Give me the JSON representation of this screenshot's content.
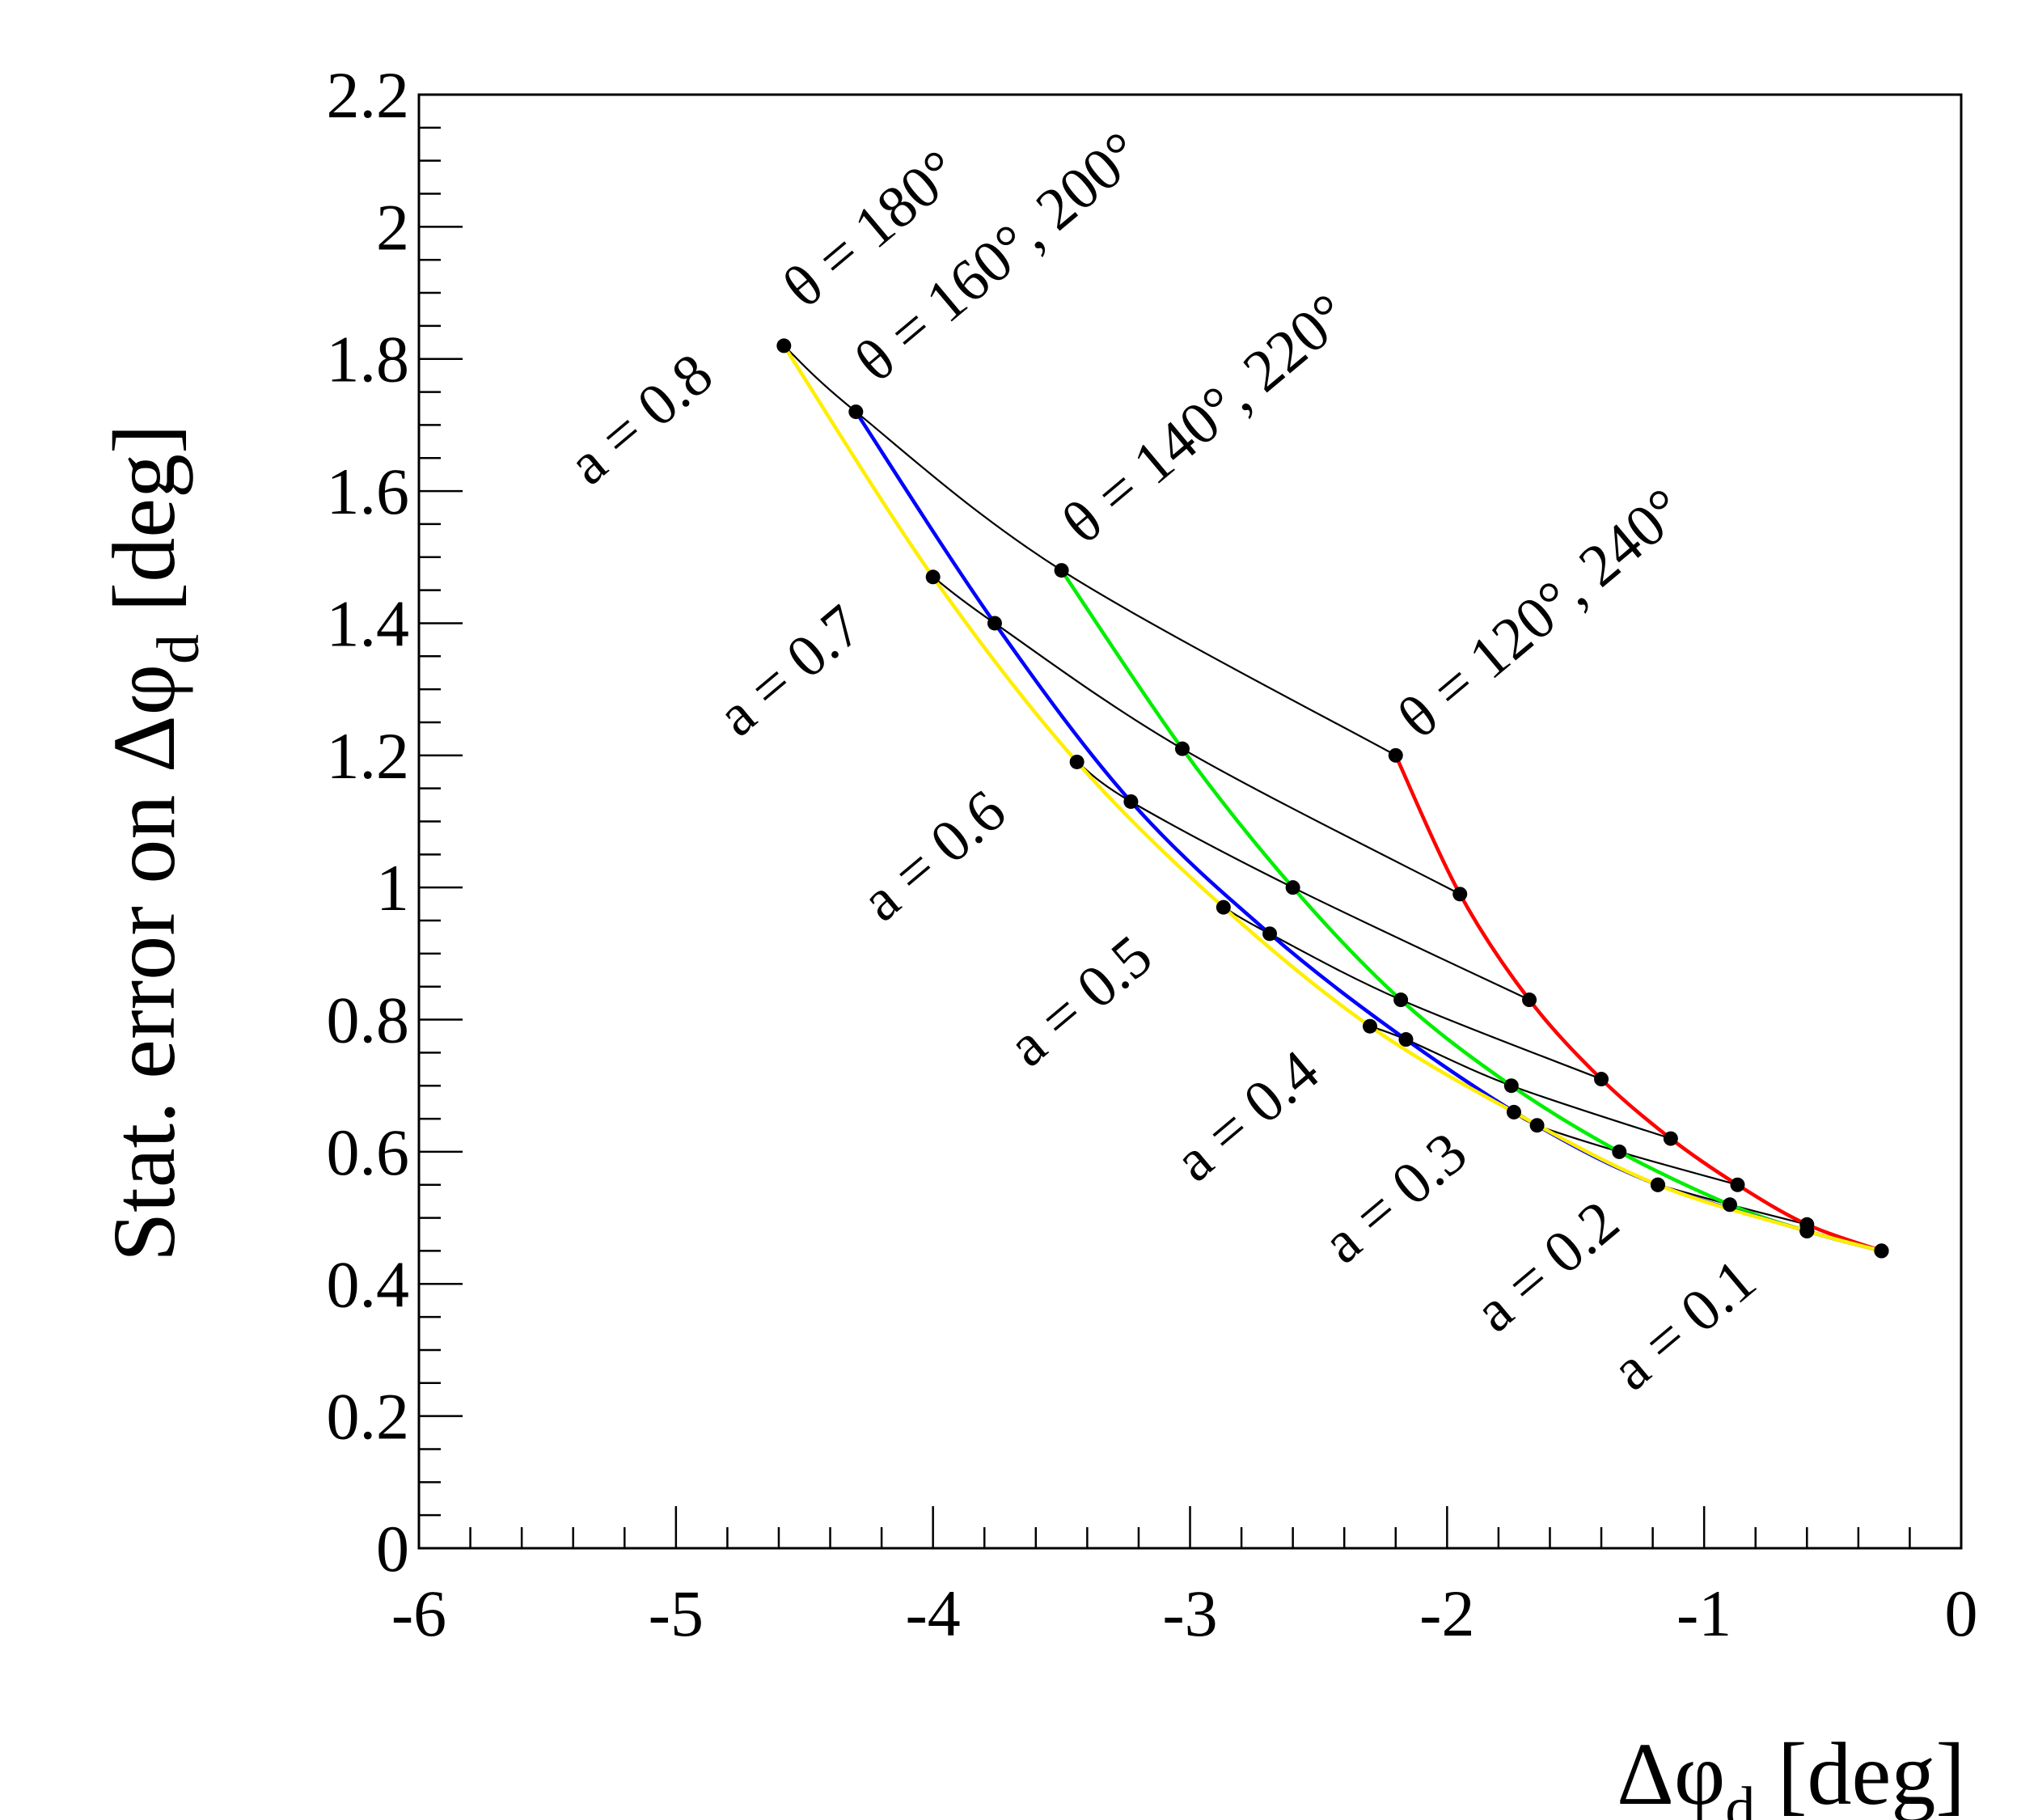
{
  "chart_data": {
    "type": "line",
    "xlabel": "Δφ",
    "xlabel_subscript": "d",
    "xlabel_unit": " [deg]",
    "ylabel": "Stat. error on Δφ",
    "ylabel_subscript": "d",
    "ylabel_unit": " [deg]",
    "xlim": [
      -6,
      0
    ],
    "ylim": [
      0,
      2.2
    ],
    "x_ticks": [
      -6,
      -5,
      -4,
      -3,
      -2,
      -1,
      0
    ],
    "x_tick_labels": [
      "-6",
      "-5",
      "-4",
      "-3",
      "-2",
      "-1",
      "0"
    ],
    "y_ticks": [
      0,
      0.2,
      0.4,
      0.6,
      0.8,
      1,
      1.2,
      1.4,
      1.6,
      1.8,
      2,
      2.2
    ],
    "y_tick_labels": [
      "0",
      "0.2",
      "0.4",
      "0.6",
      "0.8",
      "1",
      "1.2",
      "1.4",
      "1.6",
      "1.8",
      "2",
      "2.2"
    ],
    "theta_series": [
      {
        "name": "θ = 120°, 240°",
        "label": "θ = 120°, 240°",
        "color": "#ff0000",
        "x": [
          -2.2,
          -1.95,
          -1.68,
          -1.4,
          -1.13,
          -0.87,
          -0.6,
          -0.31
        ],
        "y": [
          1.2,
          0.99,
          0.83,
          0.71,
          0.62,
          0.55,
          0.49,
          0.45
        ]
      },
      {
        "name": "θ = 140°, 220°",
        "label": "θ = 140°, 220°",
        "color": "#00ee00",
        "x": [
          -3.5,
          -3.03,
          -2.6,
          -2.18,
          -1.75,
          -1.33,
          -0.9,
          -0.6,
          -0.31
        ],
        "y": [
          1.48,
          1.21,
          1.0,
          0.83,
          0.7,
          0.6,
          0.52,
          0.48,
          0.45
        ]
      },
      {
        "name": "θ = 160°, 200°",
        "label": "θ = 160°, 200°",
        "color": "#0000ff",
        "x": [
          -4.3,
          -3.76,
          -3.23,
          -2.69,
          -2.16,
          -1.65,
          -1.18,
          -0.6,
          -0.31
        ],
        "y": [
          1.72,
          1.4,
          1.13,
          0.93,
          0.77,
          0.64,
          0.55,
          0.48,
          0.45
        ]
      },
      {
        "name": "θ = 180°",
        "label": "θ = 180°",
        "color": "#ffee00",
        "x": [
          -4.58,
          -4.0,
          -3.44,
          -2.87,
          -2.3,
          -1.74,
          -1.18,
          -0.6,
          -0.31
        ],
        "y": [
          1.82,
          1.47,
          1.19,
          0.97,
          0.79,
          0.66,
          0.55,
          0.48,
          0.45
        ]
      }
    ],
    "a_series": [
      {
        "name": "a = 0.8",
        "x": [
          -4.58,
          -4.3,
          -3.5,
          -2.2
        ],
        "y": [
          1.82,
          1.72,
          1.48,
          1.2
        ]
      },
      {
        "name": "a = 0.7",
        "x": [
          -4.0,
          -3.76,
          -3.03,
          -1.95
        ],
        "y": [
          1.47,
          1.4,
          1.21,
          0.99
        ]
      },
      {
        "name": "a = 0.6",
        "x": [
          -3.44,
          -3.23,
          -2.6,
          -1.68
        ],
        "y": [
          1.19,
          1.13,
          1.0,
          0.83
        ]
      },
      {
        "name": "a = 0.5",
        "x": [
          -2.87,
          -2.69,
          -2.18,
          -1.4
        ],
        "y": [
          0.97,
          0.93,
          0.83,
          0.71
        ]
      },
      {
        "name": "a = 0.4",
        "x": [
          -2.3,
          -2.16,
          -1.75,
          -1.13
        ],
        "y": [
          0.79,
          0.77,
          0.7,
          0.62
        ]
      },
      {
        "name": "a = 0.3",
        "x": [
          -1.74,
          -1.65,
          -1.33,
          -0.87
        ],
        "y": [
          0.66,
          0.64,
          0.6,
          0.55
        ]
      },
      {
        "name": "a = 0.2",
        "x": [
          -1.18,
          -1.18,
          -0.9,
          -0.6
        ],
        "y": [
          0.55,
          0.55,
          0.52,
          0.49
        ]
      },
      {
        "name": "a = 0.1",
        "x": [
          -0.6,
          -0.6,
          -0.6,
          -0.31
        ],
        "y": [
          0.48,
          0.48,
          0.48,
          0.45
        ]
      }
    ],
    "line_color": "#000000",
    "marker_color": "#000000"
  }
}
